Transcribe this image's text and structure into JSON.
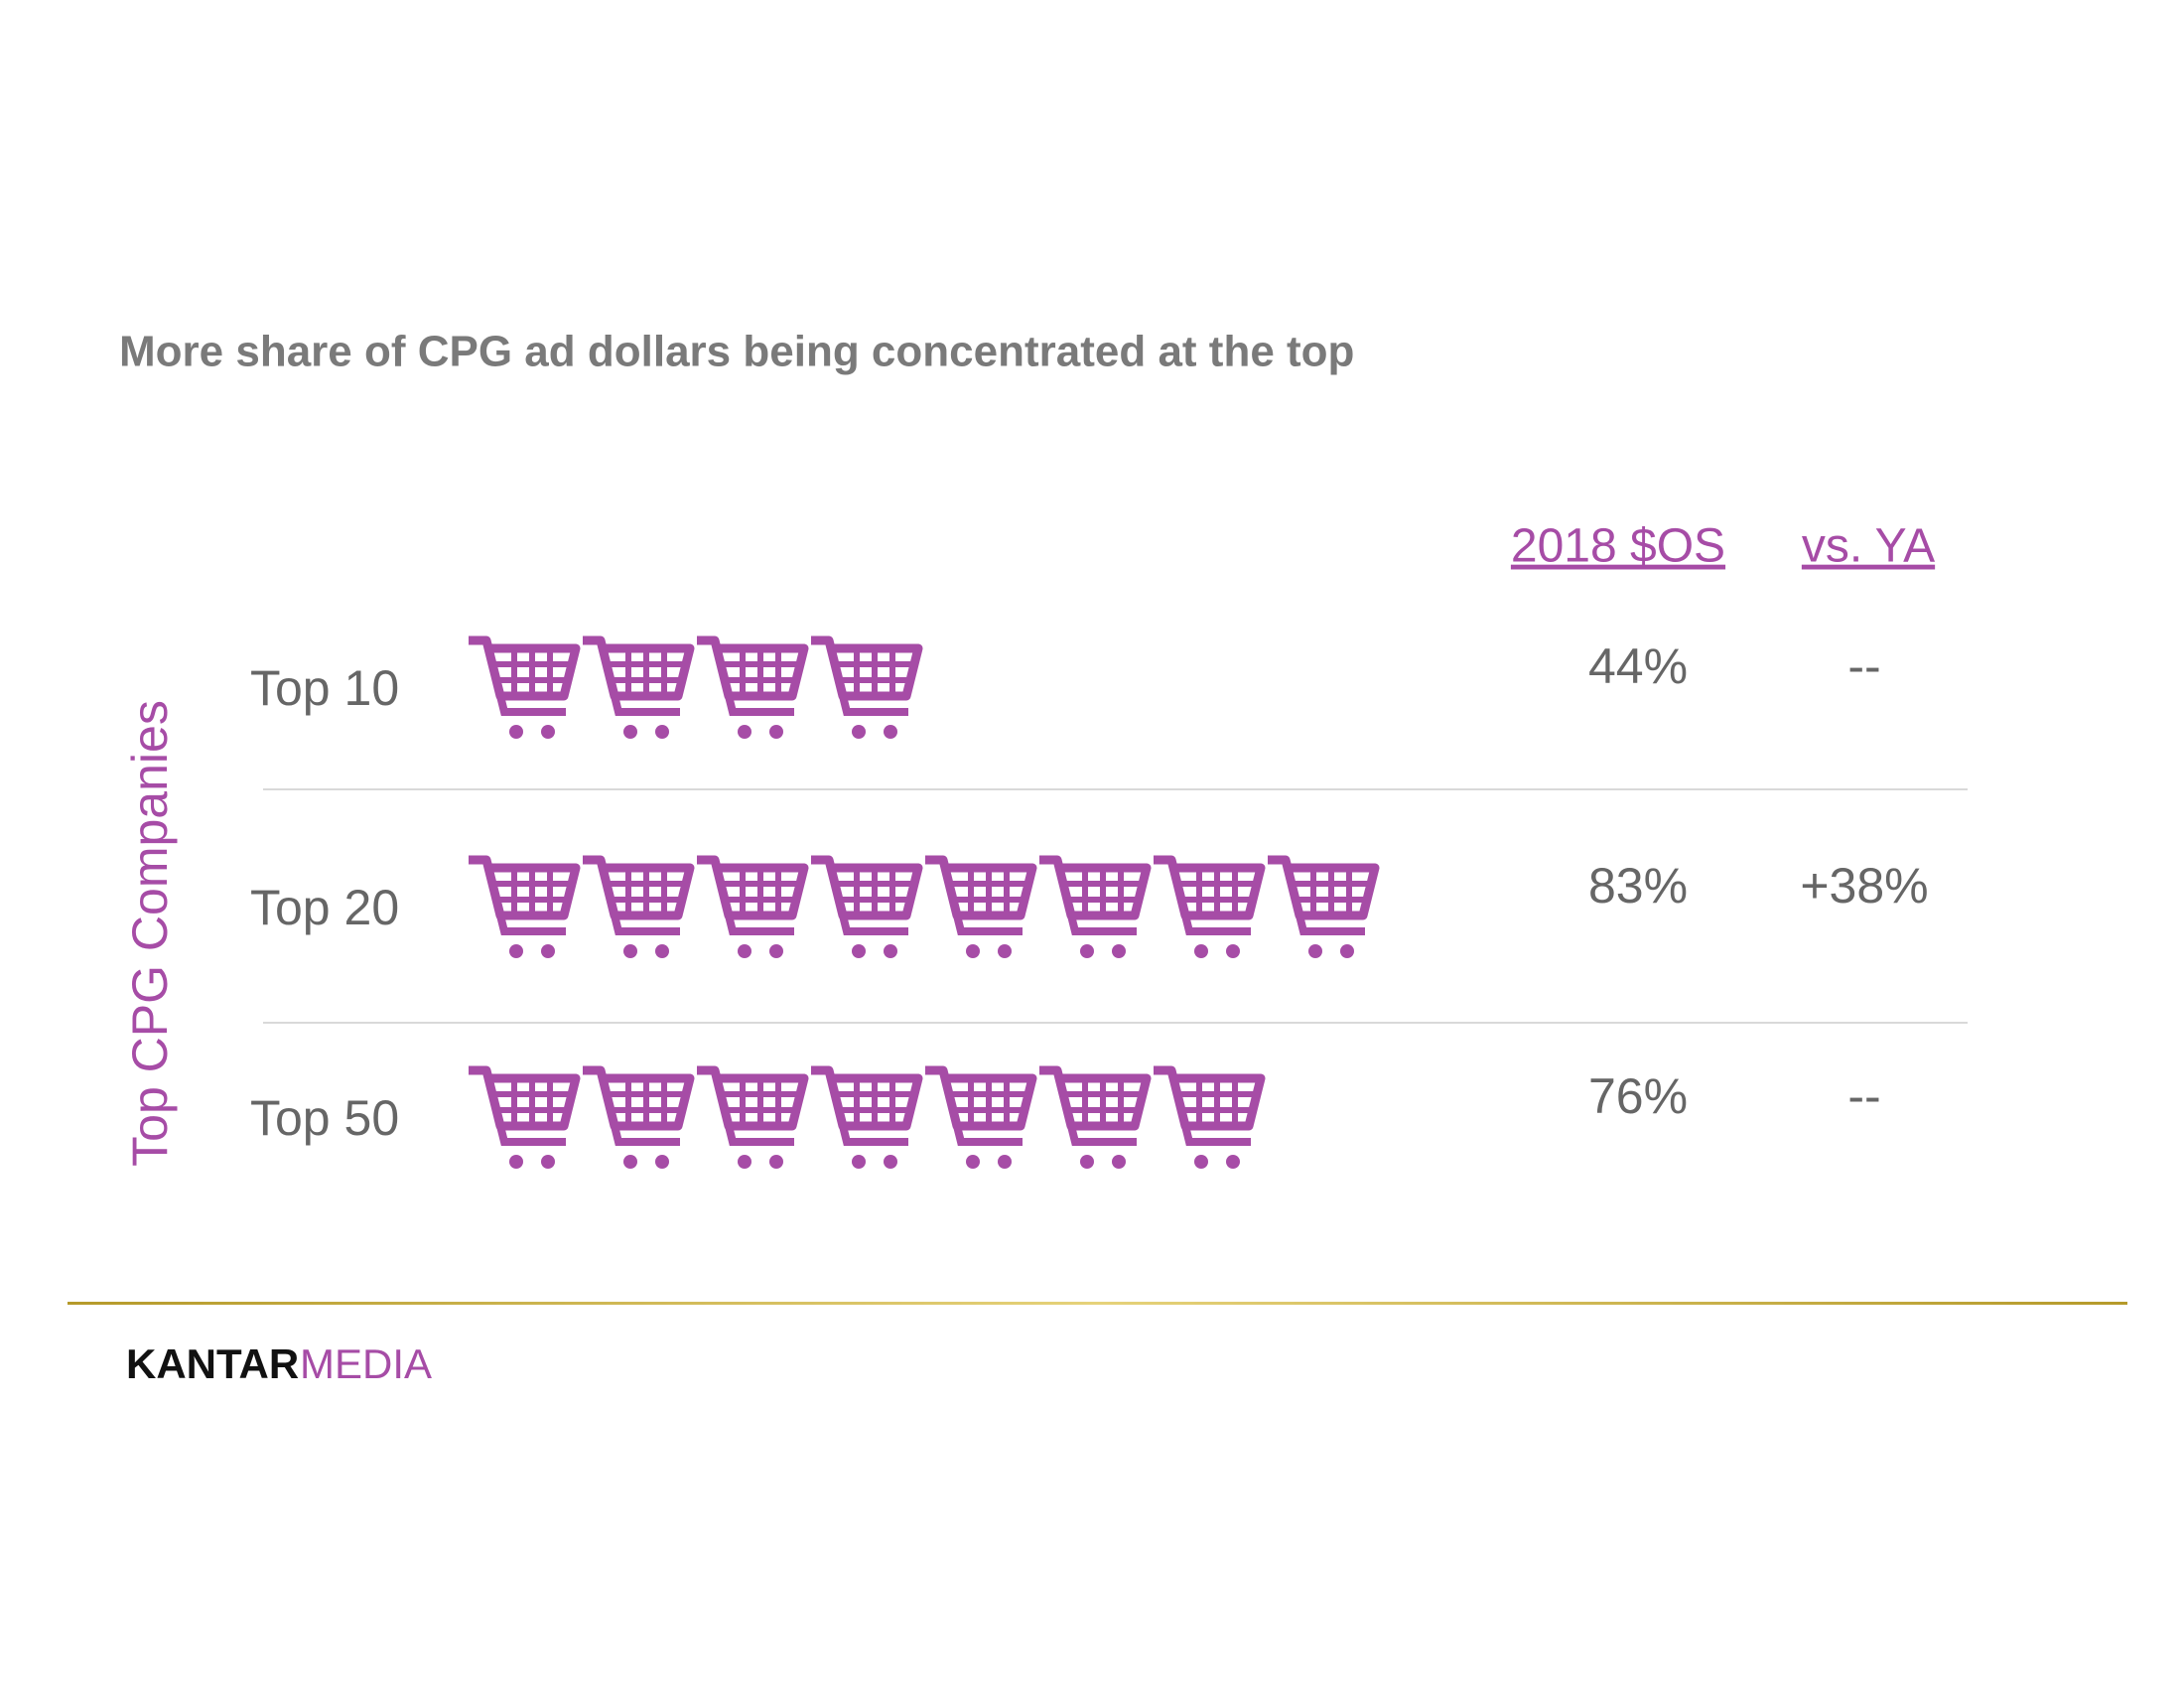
{
  "chart_data": {
    "type": "pictogram",
    "title": "More share of CPG ad dollars being concentrated at the top",
    "axis_label": "Top CPG Companies",
    "columns": [
      "2018 $OS",
      "vs. YA"
    ],
    "categories": [
      "Top 10",
      "Top 20",
      "Top 50"
    ],
    "values": [
      44,
      83,
      76
    ],
    "value_labels": [
      "44%",
      "83%",
      "76%"
    ],
    "change_labels": [
      "--",
      "+38%",
      "--"
    ],
    "color": "#a64ca6",
    "footer": {
      "brand": "KANTAR",
      "brand_accent": "MEDIA"
    }
  }
}
